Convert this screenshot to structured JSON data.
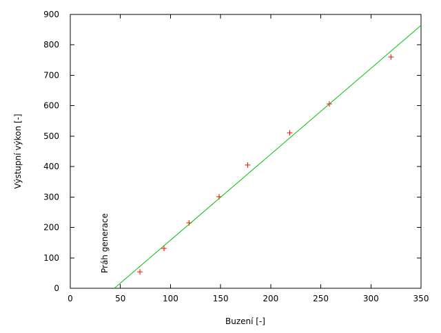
{
  "chart_data": {
    "type": "scatter",
    "title": "",
    "xlabel": "Buzení [-]",
    "ylabel": "Výstupní výkon [-]",
    "xlim": [
      0,
      350
    ],
    "ylim": [
      0,
      900
    ],
    "xticks": [
      0,
      50,
      100,
      150,
      200,
      250,
      300,
      350
    ],
    "yticks": [
      0,
      100,
      200,
      300,
      400,
      500,
      600,
      700,
      800,
      900
    ],
    "grid": false,
    "annotation": "Práh generace",
    "series": [
      {
        "type": "scatter",
        "marker": "plus",
        "color": "#ff0000",
        "x": [
          69.5,
          93.5,
          118.5,
          148.5,
          177,
          219,
          258.5,
          320
        ],
        "y": [
          54,
          131,
          215,
          301,
          405,
          511,
          606,
          760
        ]
      },
      {
        "type": "line",
        "color": "#00c000",
        "x": [
          44,
          350
        ],
        "y": [
          0,
          864
        ]
      }
    ]
  }
}
